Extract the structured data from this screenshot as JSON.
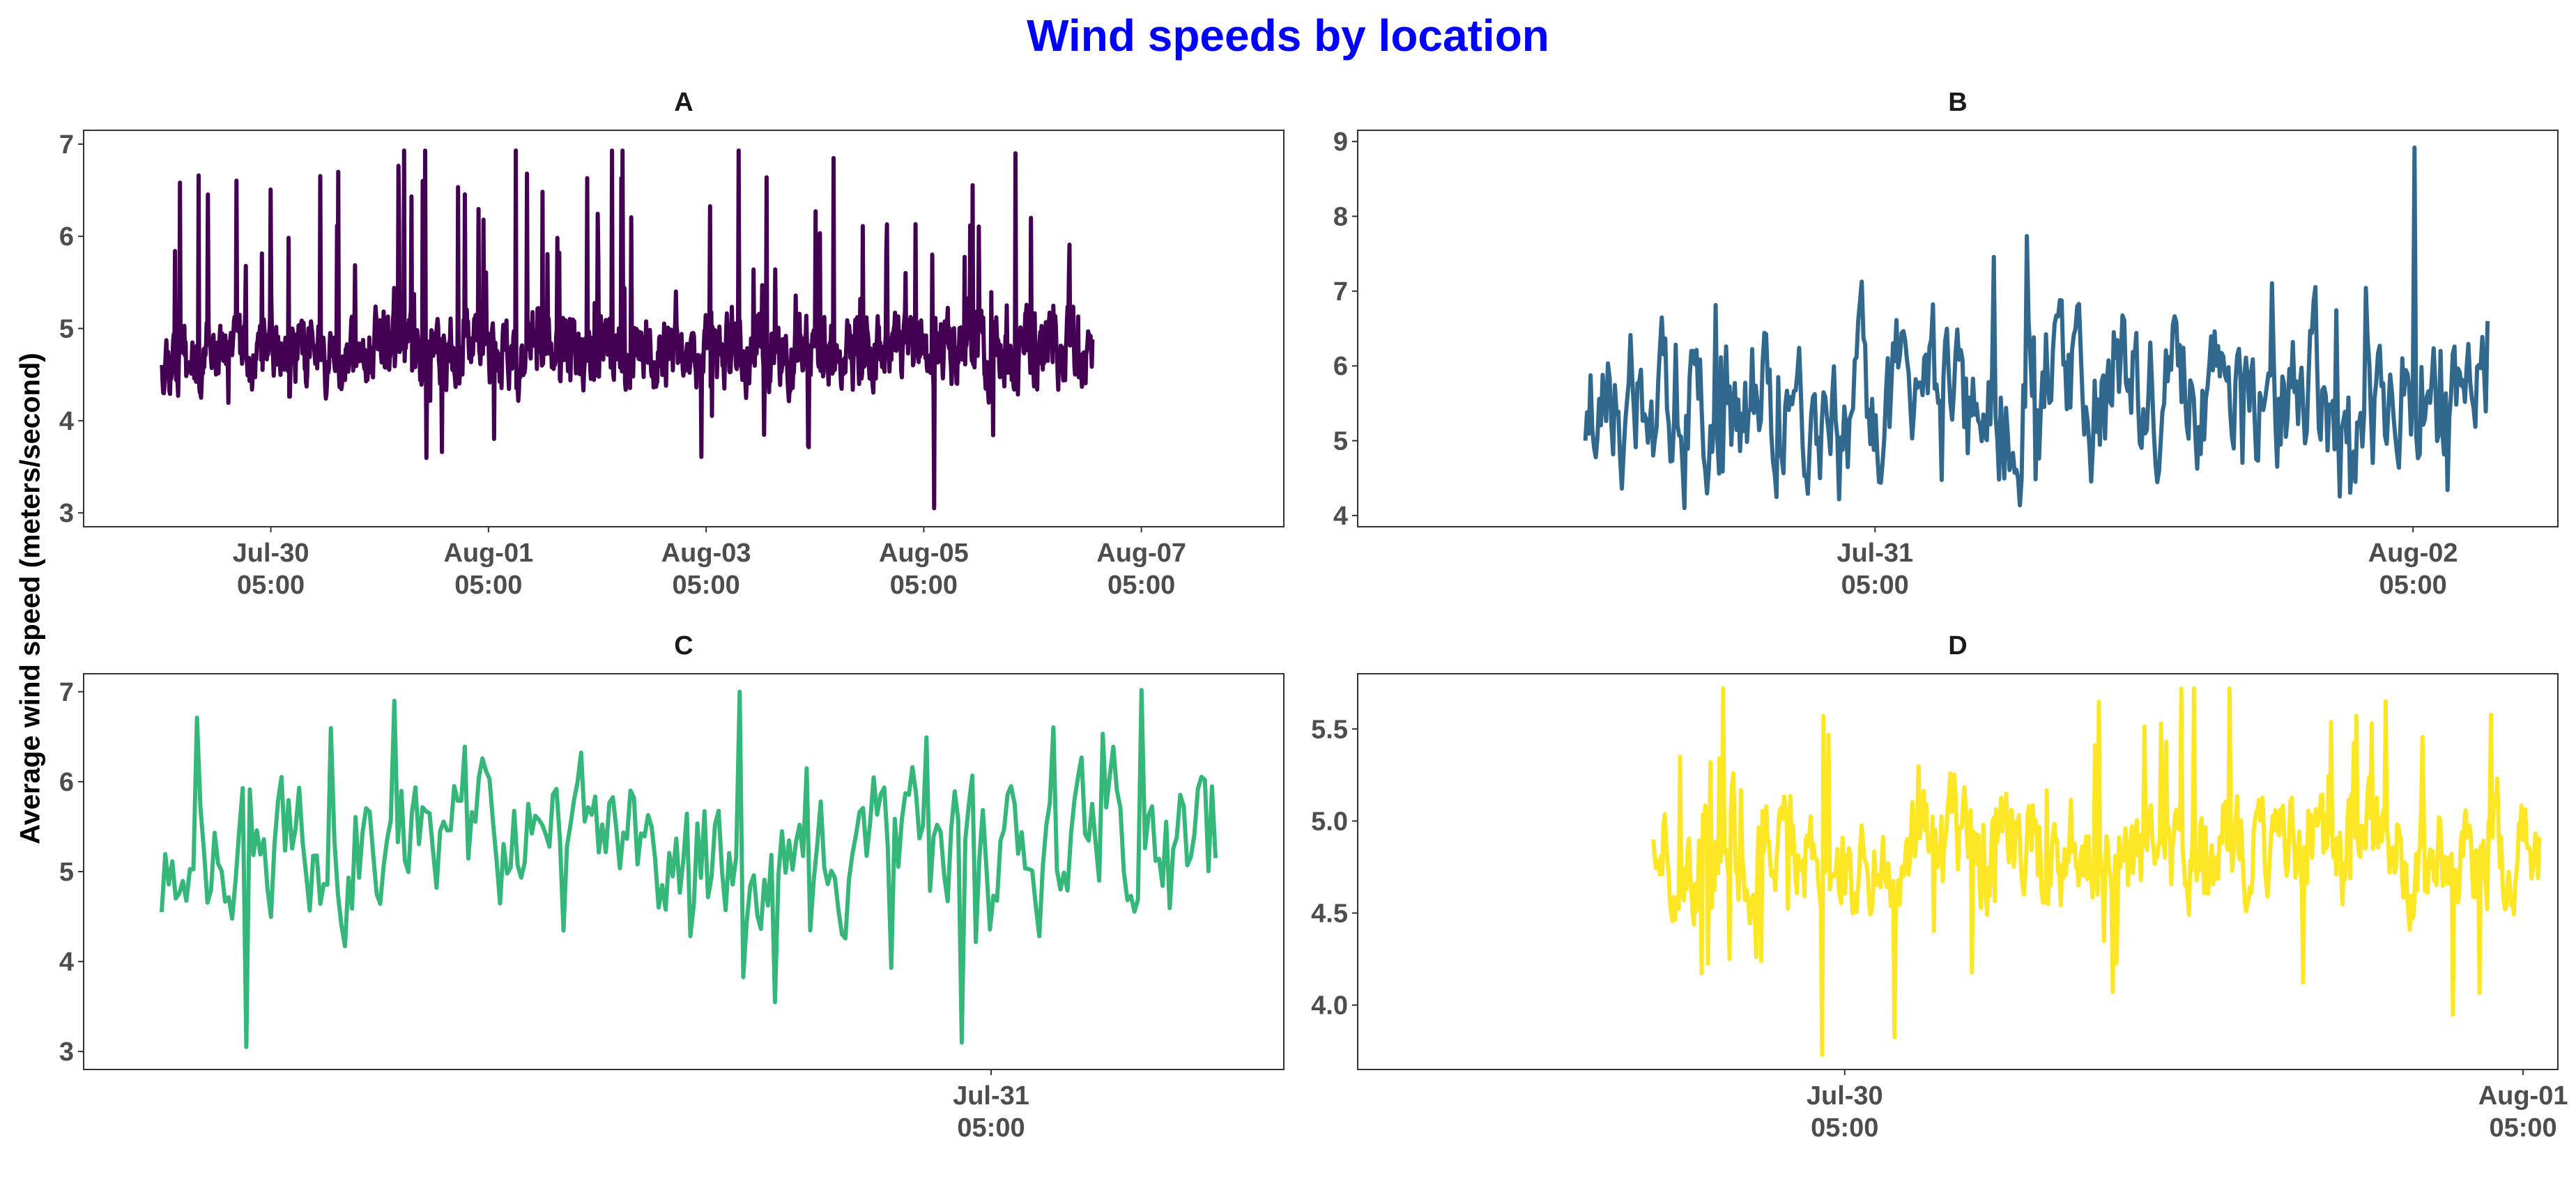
{
  "title": "Wind speeds by location",
  "ylabel": "Average wind speed (meters/second)",
  "colors": {
    "A": "#440154",
    "B": "#31688e",
    "C": "#35b779",
    "D": "#fde725",
    "title": "#0000ff"
  },
  "chart_data": [
    {
      "type": "line",
      "panel": "A",
      "ylim": [
        2.85,
        7.15
      ],
      "yticks": [
        3,
        4,
        5,
        6,
        7
      ],
      "xlim": [
        -0.72,
        7.0
      ],
      "xticks": [
        {
          "pos": 1,
          "label": [
            "Jul-30",
            "05:00"
          ]
        },
        {
          "pos": 3,
          "label": [
            "Aug-01",
            "05:00"
          ]
        },
        {
          "pos": 5,
          "label": [
            "Aug-03",
            "05:00"
          ]
        },
        {
          "pos": 7,
          "label": [
            "Aug-05",
            "05:00"
          ]
        },
        {
          "pos": 9,
          "label": [
            "Aug-07",
            "05:00"
          ]
        }
      ],
      "x_domain": [
        0.0,
        8.55
      ],
      "series": [
        {
          "n": 1500,
          "seed": 11,
          "base": 4.75,
          "noise": 0.28,
          "spike_prob": 0.05,
          "spike_amp": 1.9,
          "dip_prob": 0.01,
          "dip_amp": 0.9,
          "range": [
            3.05,
            6.93
          ],
          "events": [
            [
              0.83,
              3.05
            ],
            [
              0.28,
              6.6
            ],
            [
              0.38,
              6.93
            ],
            [
              0.62,
              6.93
            ]
          ]
        }
      ]
    },
    {
      "type": "line",
      "panel": "B",
      "ylim": [
        3.85,
        9.15
      ],
      "yticks": [
        4,
        5,
        6,
        7,
        8,
        9
      ],
      "xlim": [
        -0.55,
        2.35
      ],
      "xticks": [
        {
          "pos": 0.7,
          "label": [
            "Jul-31",
            "05:00"
          ]
        },
        {
          "pos": 2.0,
          "label": [
            "Aug-02",
            "05:00"
          ]
        }
      ],
      "x_domain": [
        0.0,
        2.18
      ],
      "series": [
        {
          "n": 520,
          "seed": 23,
          "base": 5.6,
          "noise": 0.75,
          "spike_prob": 0.04,
          "spike_amp": 1.5,
          "dip_prob": 0.02,
          "dip_amp": 0.9,
          "range": [
            4.1,
            8.92
          ],
          "events": [
            [
              0.0,
              5.0
            ],
            [
              0.92,
              8.92
            ],
            [
              1.0,
              6.6
            ]
          ]
        }
      ]
    },
    {
      "type": "line",
      "panel": "C",
      "ylim": [
        2.8,
        7.2
      ],
      "yticks": [
        3,
        4,
        5,
        6,
        7
      ],
      "xlim": [
        -0.08,
        1.15
      ],
      "xticks": [
        {
          "pos": 0.85,
          "label": [
            "Jul-31",
            "05:00"
          ]
        }
      ],
      "x_domain": [
        0.0,
        1.08
      ],
      "series": [
        {
          "n": 300,
          "seed": 37,
          "base": 5.3,
          "noise": 0.6,
          "spike_prob": 0.05,
          "spike_amp": 1.2,
          "dip_prob": 0.05,
          "dip_amp": 1.3,
          "range": [
            3.0,
            7.02
          ],
          "events": [
            [
              0.0,
              4.55
            ],
            [
              0.08,
              3.05
            ],
            [
              0.22,
              6.9
            ],
            [
              0.55,
              7.0
            ],
            [
              0.76,
              3.1
            ],
            [
              0.93,
              7.02
            ],
            [
              1.0,
              5.15
            ]
          ]
        }
      ]
    },
    {
      "type": "line",
      "panel": "D",
      "ylim": [
        3.65,
        5.8
      ],
      "yticks": [
        4.0,
        4.5,
        5.0,
        5.5
      ],
      "ytick_fmt": 1,
      "xlim": [
        -0.85,
        2.6
      ],
      "xticks": [
        {
          "pos": 0.55,
          "label": [
            "Jul-30",
            "05:00"
          ]
        },
        {
          "pos": 2.5,
          "label": [
            "Aug-01",
            "05:00"
          ]
        }
      ],
      "x_domain": [
        0.0,
        2.55
      ],
      "series": [
        {
          "n": 700,
          "seed": 51,
          "base": 4.85,
          "noise": 0.22,
          "spike_prob": 0.04,
          "spike_amp": 0.55,
          "dip_prob": 0.04,
          "dip_amp": 0.65,
          "range": [
            3.73,
            5.72
          ],
          "events": [
            [
              0.19,
              3.73
            ],
            [
              0.61,
              5.72
            ],
            [
              0.65,
              5.72
            ],
            [
              0.0,
              4.9
            ]
          ]
        }
      ]
    }
  ],
  "panels": [
    {
      "strip": "A"
    },
    {
      "strip": "B"
    },
    {
      "strip": "C"
    },
    {
      "strip": "D"
    }
  ]
}
